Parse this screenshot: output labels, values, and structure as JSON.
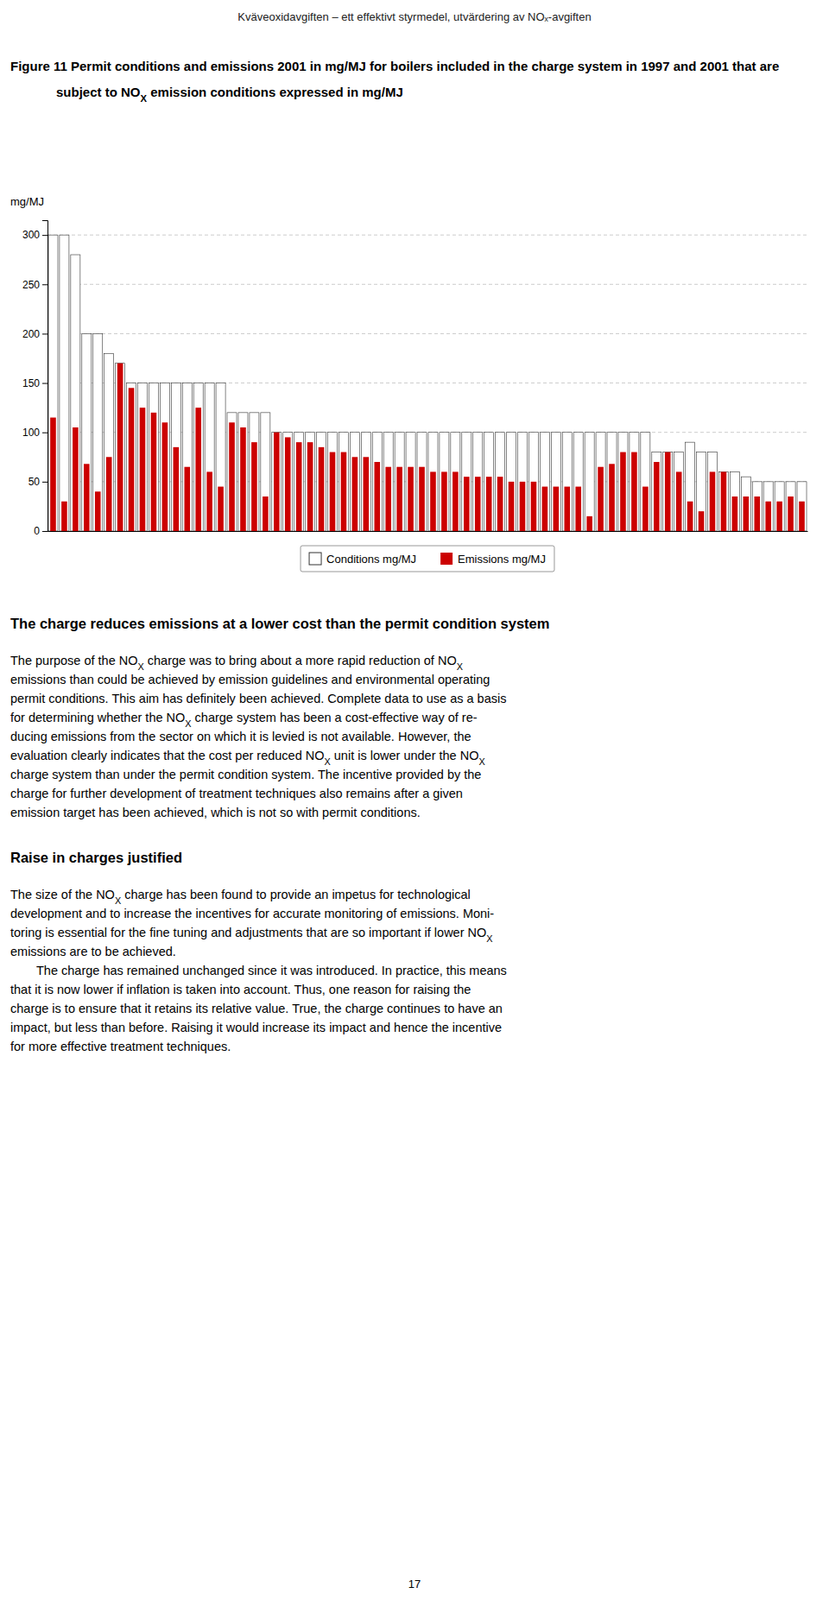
{
  "chart_data": {
    "type": "bar",
    "subtitle": "Kväveoxidavgiften – ett effektivt styrmedel, utvärdering av NOₓ-avgiften",
    "title": "Figure 11 Permit conditions and emissions 2001 in mg/MJ for boilers included in the charge system in 1997 and 2001 that are subject to NOX emission conditions expressed in mg/MJ",
    "ylabel": "mg/MJ",
    "categories": [
      null,
      null,
      null,
      null,
      null,
      null,
      null,
      null,
      null,
      null,
      null,
      null,
      null,
      null,
      null,
      null,
      null,
      null,
      null,
      null,
      null,
      null,
      null,
      null,
      null,
      null,
      null,
      null,
      null,
      null,
      null,
      null,
      null,
      null,
      null,
      null,
      null,
      null,
      null,
      null,
      null,
      null,
      null,
      null,
      null,
      null,
      null,
      null,
      null,
      null,
      null,
      null,
      null,
      null,
      null,
      null,
      null,
      null,
      null,
      null,
      null,
      null,
      null,
      null,
      null,
      null,
      null,
      null
    ],
    "series": [
      {
        "name": "Conditions mg/MJ",
        "color": "#ffffff",
        "values": [
          300,
          300,
          280,
          200,
          200,
          180,
          170,
          150,
          150,
          150,
          150,
          150,
          150,
          150,
          150,
          150,
          120,
          120,
          120,
          120,
          100,
          100,
          100,
          100,
          100,
          100,
          100,
          100,
          100,
          100,
          100,
          100,
          100,
          100,
          100,
          100,
          100,
          100,
          100,
          100,
          100,
          100,
          100,
          100,
          100,
          100,
          100,
          100,
          100,
          100,
          100,
          100,
          100,
          100,
          80,
          80,
          80,
          90,
          80,
          80,
          60,
          60,
          55,
          50,
          50,
          50,
          50,
          50
        ]
      },
      {
        "name": "Emissions mg/MJ",
        "color": "#cc0000",
        "values": [
          115,
          30,
          105,
          68,
          40,
          75,
          170,
          145,
          125,
          120,
          110,
          85,
          65,
          125,
          60,
          45,
          110,
          105,
          90,
          35,
          100,
          95,
          90,
          90,
          85,
          80,
          80,
          75,
          75,
          70,
          65,
          65,
          65,
          65,
          60,
          60,
          60,
          55,
          55,
          55,
          55,
          50,
          50,
          50,
          45,
          45,
          45,
          45,
          15,
          65,
          68,
          80,
          80,
          45,
          70,
          80,
          60,
          30,
          20,
          60,
          60,
          35,
          35,
          35,
          30,
          30,
          35,
          30
        ]
      }
    ],
    "ylim": [
      0,
      315
    ],
    "yticks": [
      0,
      50,
      100,
      150,
      200,
      250,
      300
    ],
    "grid": true,
    "legend": "bottom",
    "tick_labels": "y",
    "annotations": [
      [
        "The charge reduces emissions at a lower cost than the permit condition system"
      ],
      [
        "The purpose of the NOX charge was to bring about a more rapid reduction of NOX",
        "emissions than could be achieved by emission guidelines and environmental operating",
        "permit conditions. This aim has definitely been achieved. Complete data to use as a basis",
        "for determining whether the NOX charge system has been a cost-effective way of re-",
        "ducing emissions from the sector on which it is levied is not available. However, the",
        "evaluation clearly indicates that the cost per reduced NOX unit is lower under the NOX",
        "charge system than under the permit condition system. The incentive provided by the",
        "charge for further development of treatment techniques also remains after a given",
        "emission target has been achieved, which is not so with permit conditions."
      ],
      [
        "Raise in charges justified"
      ],
      [
        "The size of the NOX charge has been found to provide an impetus for technological",
        "development and to increase the incentives for accurate monitoring of emissions. Moni-",
        "toring is essential for the fine tuning and adjustments that are so important if lower NOX",
        "emissions are to be achieved."
      ],
      [
        "The charge has remained unchanged since it was introduced. In practice, this means",
        "that it is now lower if inflation is taken into account. Thus, one reason for raising the",
        "charge is to ensure that it retains its relative value. True, the charge continues to have an",
        "impact, but less than before. Raising it would increase its impact and hence the incentive",
        "for more effective treatment techniques."
      ],
      [
        "17"
      ]
    ]
  }
}
